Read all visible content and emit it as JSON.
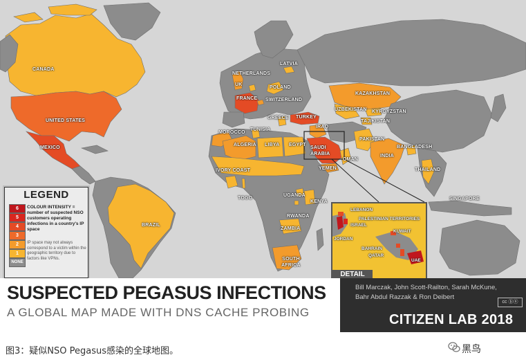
{
  "colors": {
    "ocean": "#d6d6d6",
    "land_none": "#8c8c8c",
    "border": "#6e6e6e",
    "level_1": "#f7b530",
    "level_2": "#f39b2c",
    "level_3": "#ee6a2a",
    "level_4": "#e44b25",
    "level_5": "#d9261f",
    "level_6": "#c0171d",
    "detail_bg": "#f2c232"
  },
  "countries": [
    {
      "name": "CANADA",
      "level": 1
    },
    {
      "name": "UNITED STATES",
      "level": 4
    },
    {
      "name": "MEXICO",
      "level": 3
    },
    {
      "name": "BRAZIL",
      "level": 1
    },
    {
      "name": "NETHERLANDS",
      "level": 1
    },
    {
      "name": "LATVIA",
      "level": 1
    },
    {
      "name": "UK",
      "level": 2
    },
    {
      "name": "POLAND",
      "level": 1
    },
    {
      "name": "FRANCE",
      "level": 4
    },
    {
      "name": "SWITZERLAND",
      "level": 2
    },
    {
      "name": "GREECE",
      "level": 1
    },
    {
      "name": "TURKEY",
      "level": 4
    },
    {
      "name": "IRAQ",
      "level": 2
    },
    {
      "name": "MOROCCO",
      "level": 2
    },
    {
      "name": "TUNISIA",
      "level": 1
    },
    {
      "name": "ALGERIA",
      "level": 2
    },
    {
      "name": "LIBYA",
      "level": 1
    },
    {
      "name": "EGYPT",
      "level": 1
    },
    {
      "name": "SAUDI ARABIA",
      "level": 4
    },
    {
      "name": "OMAN",
      "level": 1
    },
    {
      "name": "YEMEN",
      "level": 2
    },
    {
      "name": "KAZAKHSTAN",
      "level": 2
    },
    {
      "name": "UZBEKISTAN",
      "level": 1
    },
    {
      "name": "KYRGYZSTAN",
      "level": 1
    },
    {
      "name": "TAJIKISTAN",
      "level": 1
    },
    {
      "name": "PAKISTAN",
      "level": 1
    },
    {
      "name": "INDIA",
      "level": 2
    },
    {
      "name": "BANGLADESH",
      "level": 1
    },
    {
      "name": "THAILAND",
      "level": 1
    },
    {
      "name": "SINGAPORE",
      "level": 1
    },
    {
      "name": "IVORY COAST",
      "level": 1
    },
    {
      "name": "TOGO",
      "level": 1
    },
    {
      "name": "UGANDA",
      "level": 1
    },
    {
      "name": "KENYA",
      "level": 1
    },
    {
      "name": "RWANDA",
      "level": 1
    },
    {
      "name": "ZAMBIA",
      "level": 1
    },
    {
      "name": "SOUTH AFRICA",
      "level": 2
    }
  ],
  "legend": {
    "title": "LEGEND",
    "levels": [
      "6",
      "5",
      "4",
      "3",
      "2",
      "1",
      "NONE"
    ],
    "description": "COLOUR INTENSITY = number of suspected NSO customers operating infections in a country's IP space",
    "note": "IP space may not always correspond to a victim within the geographic territory due to factors like VPNs."
  },
  "detail": {
    "tag": "DETAIL",
    "labels": [
      "LEBANON",
      "PALESTINIAN TERRITORIES",
      "ISRAEL",
      "JORDAN",
      "KUWAIT",
      "BAHRAIN",
      "QATAR",
      "UAE"
    ]
  },
  "title": {
    "main": "SUSPECTED PEGASUS INFECTIONS",
    "sub": "A GLOBAL MAP MADE WITH DNS CACHE PROBING"
  },
  "credits": {
    "authors_line1": "Bill Marczak, John Scott-Railton, Sarah McKune,",
    "authors_line2": "Bahr Abdul Razzak & Ron Deibert",
    "cc": "cc ⓑⓝ",
    "org": "CITIZEN LAB 2018"
  },
  "caption": "图3：疑似NSO Pegasus感染的全球地图。",
  "brand": "黑鸟"
}
